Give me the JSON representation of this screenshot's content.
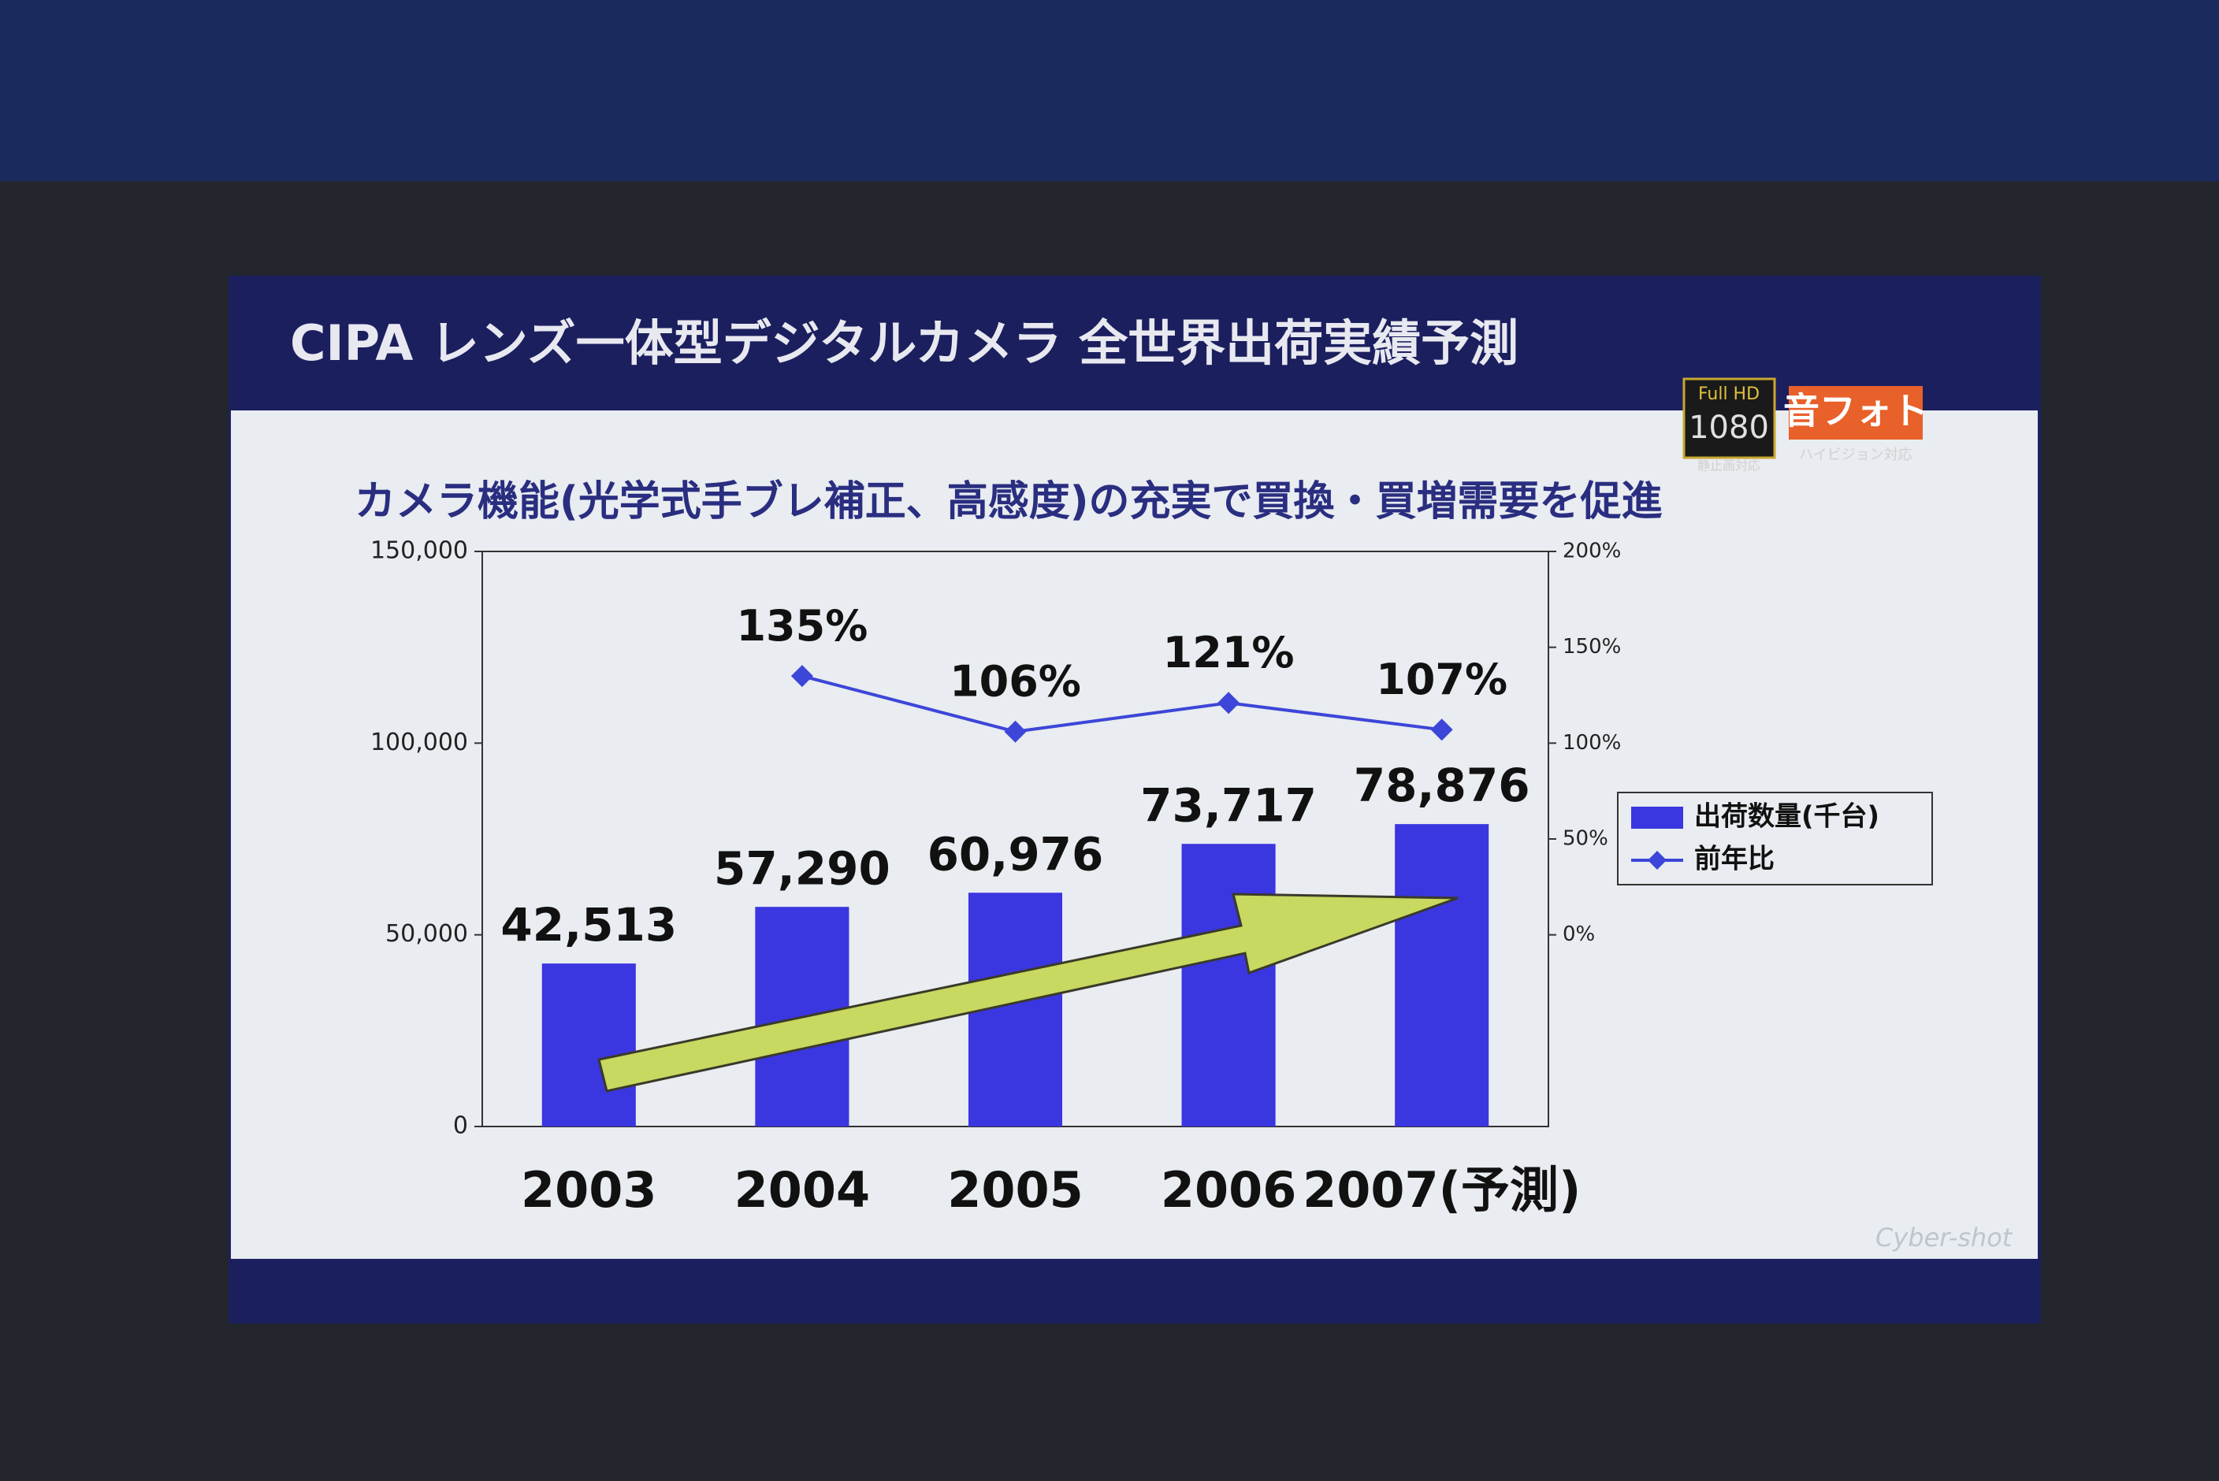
{
  "chart_data": {
    "type": "bar",
    "title": "CIPA レンズ一体型デジタルカメラ 全世界出荷実績予測",
    "subtitle": "カメラ機能(光学式手ブレ補正、高感度)の充実で買換・買増需要を促進",
    "categories": [
      "2003",
      "2004",
      "2005",
      "2006",
      "2007(予測)"
    ],
    "series": [
      {
        "name": "出荷数量(千台)",
        "type": "bar",
        "color": "#3a36e0",
        "values": [
          42513,
          57290,
          60976,
          73717,
          78876
        ],
        "value_labels": [
          "42,513",
          "57,290",
          "60,976",
          "73,717",
          "78,876"
        ]
      },
      {
        "name": "前年比",
        "type": "line",
        "axis": "y2",
        "color": "#3c46d8",
        "values": [
          null,
          135,
          106,
          121,
          107
        ],
        "value_labels": [
          null,
          "135%",
          "106%",
          "121%",
          "107%"
        ]
      }
    ],
    "ylim": [
      0,
      150000
    ],
    "yticks": [
      0,
      {
        "value": 50000,
        "label": "50,000"
      },
      {
        "value": 100000,
        "label": "100,000"
      },
      {
        "value": 150000,
        "label": "150,000"
      }
    ],
    "y2lim": [
      -100,
      200
    ],
    "y2ticks": [
      {
        "value": 0,
        "label": "0%"
      },
      {
        "value": 50,
        "label": "50%"
      },
      {
        "value": 100,
        "label": "100%"
      },
      {
        "value": 150,
        "label": "150%"
      },
      {
        "value": 200,
        "label": "200%"
      }
    ],
    "legend": "right",
    "grid": false
  },
  "logos": {
    "full_hd": "Full HD",
    "hd_number": "1080",
    "still_note": "静止画対応",
    "oto_photo": "音フォト",
    "hivision_note": "ハイビジョン対応",
    "brand": "Cyber-shot"
  }
}
